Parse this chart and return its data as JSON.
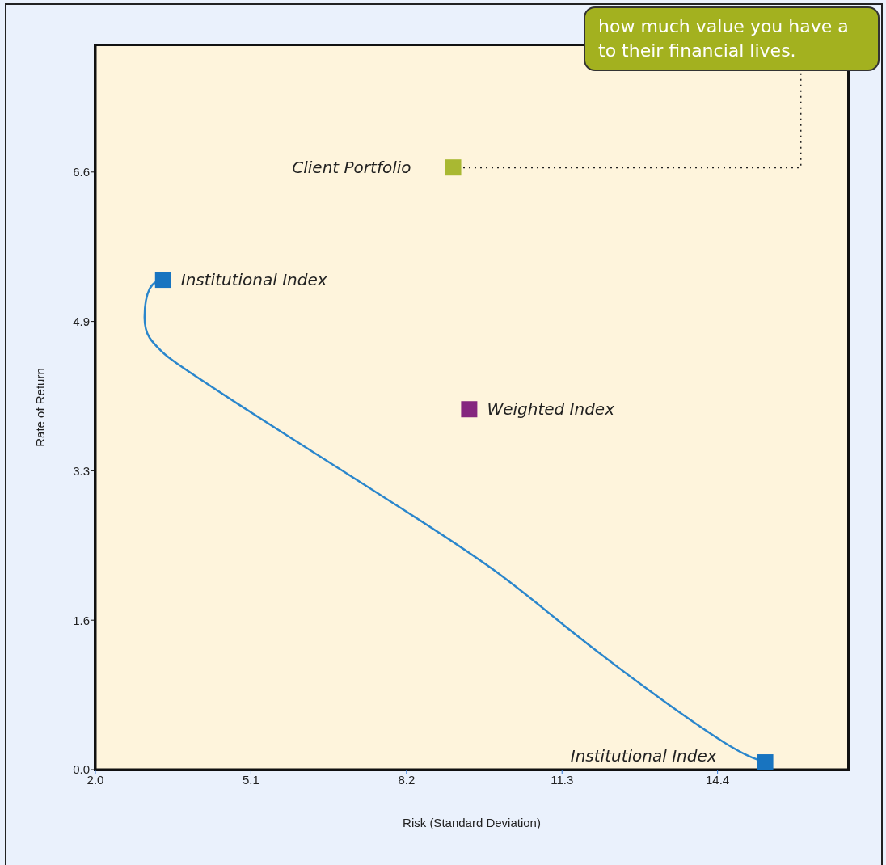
{
  "chart_data": {
    "type": "scatter",
    "xlabel": "Risk (Standard Deviation)",
    "ylabel": "Rate of Return",
    "xlim": [
      2.0,
      17.0
    ],
    "xticks": [
      {
        "value": 2,
        "label": "2.0"
      },
      5.1,
      8.2,
      11.3,
      14.4
    ],
    "ylim": [
      0,
      8.0
    ],
    "yticks": [
      {
        "value": 0,
        "label": "0.0"
      },
      {
        "value": 1.65,
        "label": "1.6"
      },
      3.3,
      {
        "value": 4.95,
        "label": "4.9"
      },
      6.6
    ],
    "marker": "square",
    "grid": false,
    "legend": false,
    "series": [
      {
        "type": "line",
        "color": "#2a86cc",
        "marker": "none",
        "x": [
          3.35,
          3.08,
          2.98,
          3.08,
          3.32,
          3.64,
          4.92,
          6.53,
          8.14,
          9.9,
          11.35,
          12.95,
          14.56,
          15.35
        ],
        "values": [
          5.41,
          5.31,
          5.0,
          4.77,
          4.62,
          4.48,
          4.01,
          3.44,
          2.87,
          2.22,
          1.59,
          0.91,
          0.29,
          0.08
        ]
      },
      {
        "name": "Institutional Index",
        "color": "#1874c0",
        "x": [
          3.35
        ],
        "values": [
          5.41
        ]
      },
      {
        "name": "Client Portfolio",
        "color": "#a9b832",
        "x": [
          9.13
        ],
        "values": [
          6.65
        ]
      },
      {
        "name": "Weighted Index",
        "color": "#85267f",
        "x": [
          9.45
        ],
        "values": [
          3.98
        ]
      },
      {
        "name": "Institutional Index",
        "color": "#1874c0",
        "x": [
          15.35
        ],
        "values": [
          0.08
        ]
      }
    ],
    "annotations": [
      "how much value you have a\nto their financial lives."
    ]
  }
}
